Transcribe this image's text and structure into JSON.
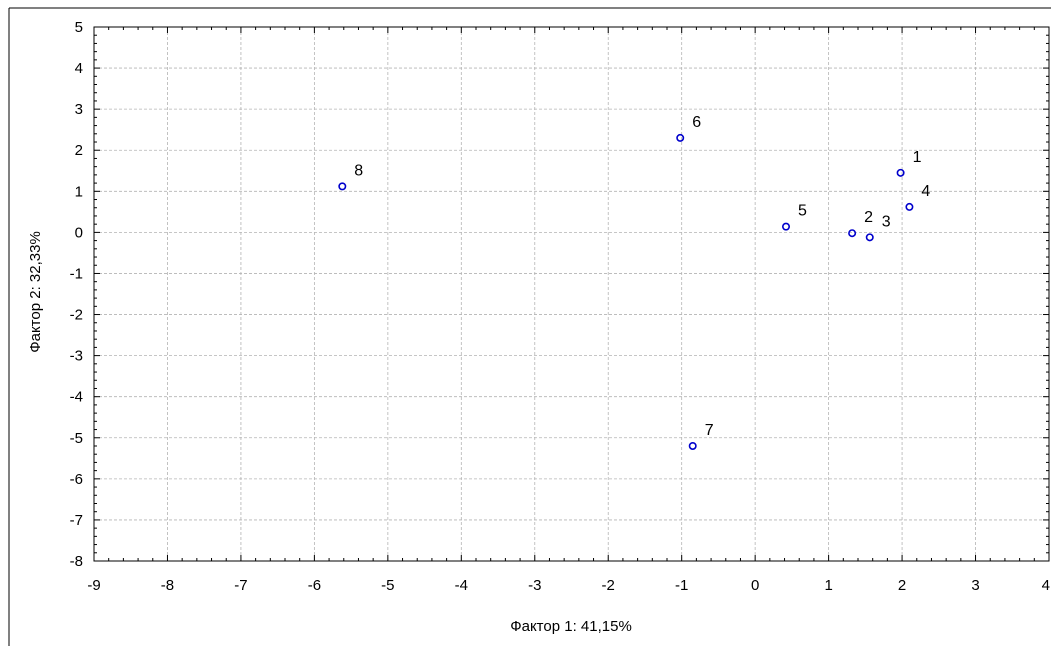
{
  "chart_data": {
    "type": "scatter",
    "title": "",
    "xlabel": "Фактор 1: 41,15%",
    "ylabel": "Фактор 2: 32,33%",
    "xlim": [
      -9,
      4
    ],
    "ylim": [
      -8,
      5
    ],
    "x_ticks": [
      -9,
      -8,
      -7,
      -6,
      -5,
      -4,
      -3,
      -2,
      -1,
      0,
      1,
      2,
      3,
      4
    ],
    "y_ticks": [
      -8,
      -7,
      -6,
      -5,
      -4,
      -3,
      -2,
      -1,
      0,
      1,
      2,
      3,
      4,
      5
    ],
    "grid": true,
    "marker": "open-circle",
    "marker_color": "#0000CC",
    "points": [
      {
        "label": "1",
        "x": 1.98,
        "y": 1.45
      },
      {
        "label": "2",
        "x": 1.32,
        "y": -0.02
      },
      {
        "label": "3",
        "x": 1.56,
        "y": -0.12
      },
      {
        "label": "4",
        "x": 2.1,
        "y": 0.62
      },
      {
        "label": "5",
        "x": 0.42,
        "y": 0.14
      },
      {
        "label": "6",
        "x": -1.02,
        "y": 2.3
      },
      {
        "label": "7",
        "x": -0.85,
        "y": -5.2
      },
      {
        "label": "8",
        "x": -5.62,
        "y": 1.12
      }
    ]
  }
}
